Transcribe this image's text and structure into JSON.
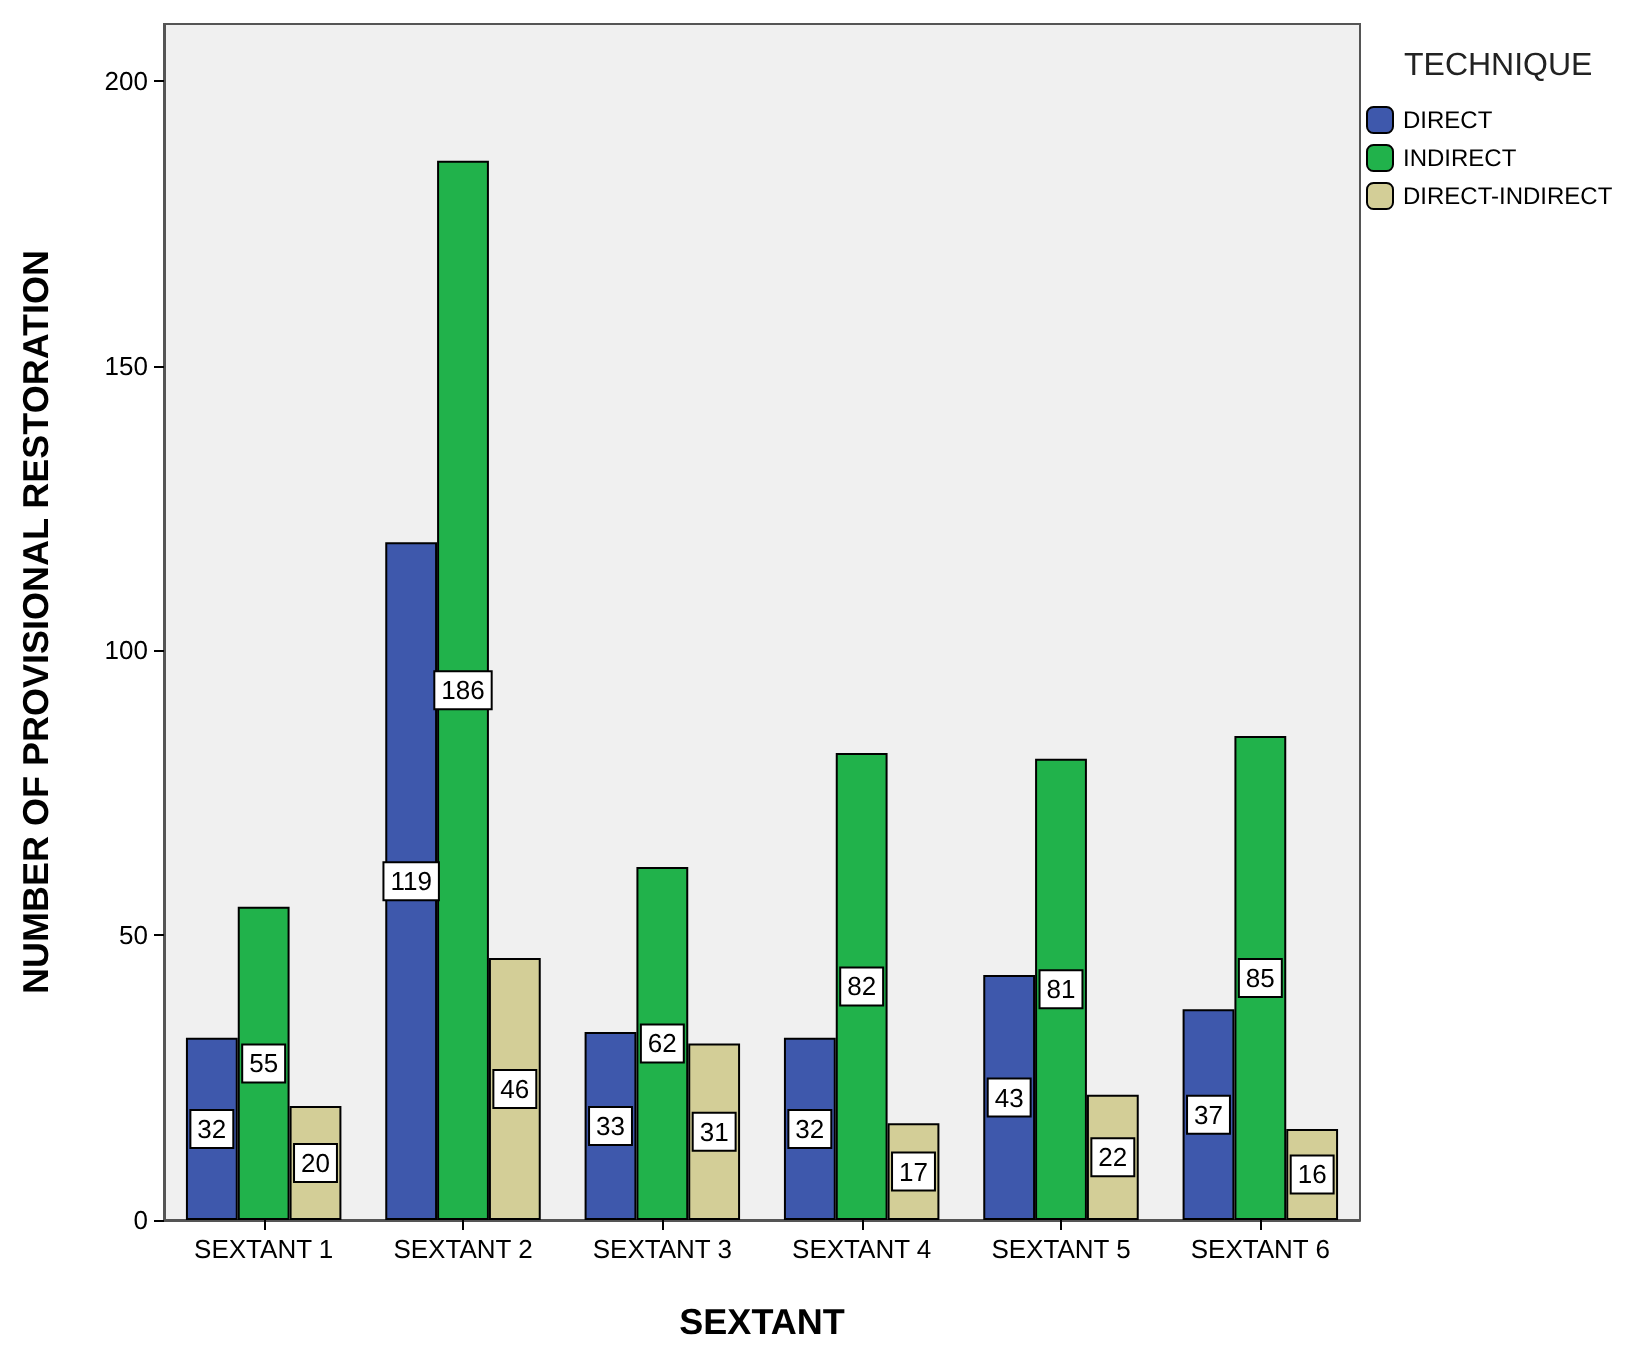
{
  "chart_data": {
    "type": "bar",
    "xlabel": "SEXTANT",
    "ylabel": "NUMBER OF PROVISIONAL RESTORATION",
    "legend_title": "TECHNIQUE",
    "categories": [
      "SEXTANT 1",
      "SEXTANT 2",
      "SEXTANT 3",
      "SEXTANT 4",
      "SEXTANT 5",
      "SEXTANT 6"
    ],
    "series": [
      {
        "name": "DIRECT",
        "color": "#3e58ac",
        "values": [
          32,
          119,
          33,
          32,
          43,
          37
        ]
      },
      {
        "name": "INDIRECT",
        "color": "#21b24b",
        "values": [
          55,
          186,
          62,
          82,
          81,
          85
        ]
      },
      {
        "name": "DIRECT-INDIRECT",
        "color": "#d3ce97",
        "values": [
          20,
          46,
          31,
          17,
          22,
          16
        ]
      }
    ],
    "ylim": [
      0,
      210
    ],
    "yticks": [
      0,
      50,
      100,
      150,
      200
    ],
    "grid": false,
    "legend": "top right",
    "data_labels": true
  }
}
